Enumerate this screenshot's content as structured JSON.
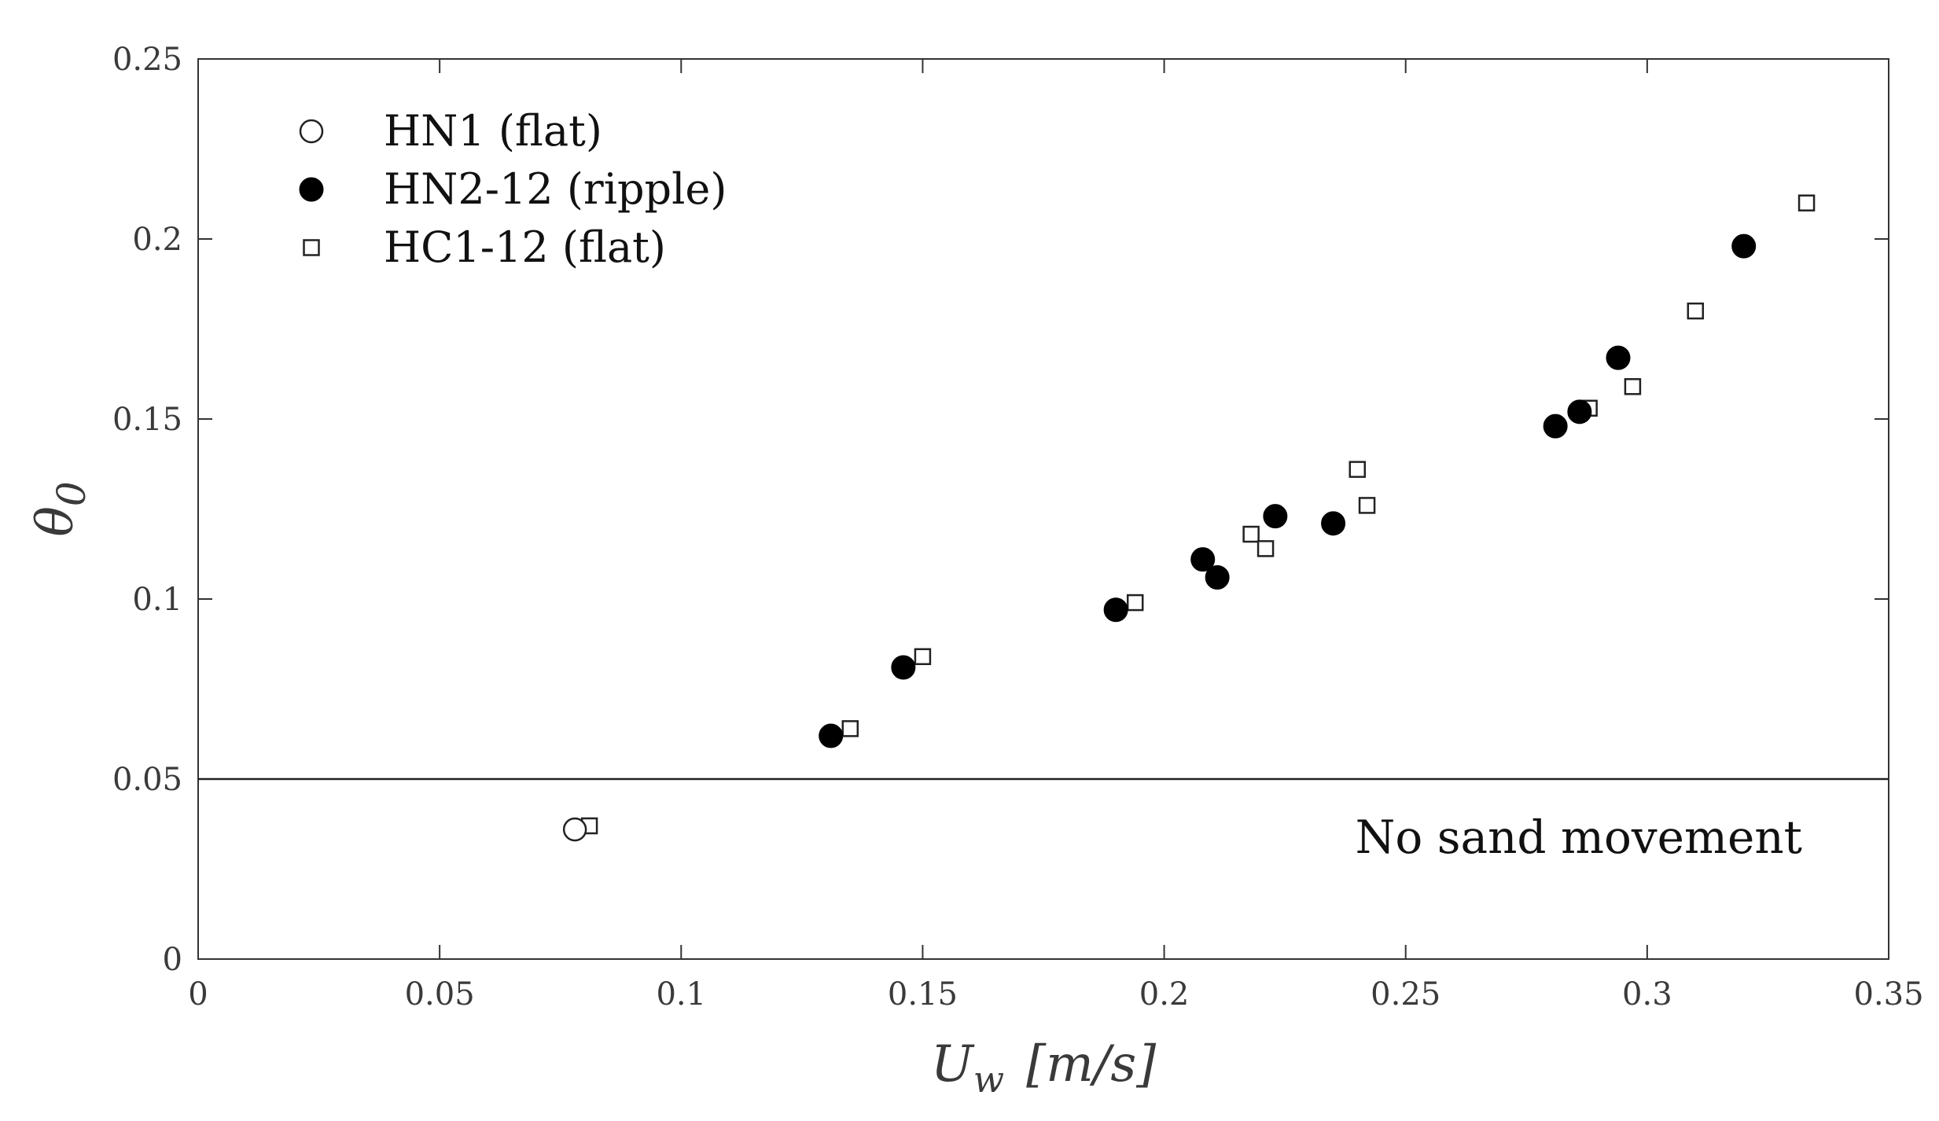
{
  "chart_data": {
    "type": "scatter",
    "title": "",
    "xlabel": "U_w [m/s]",
    "ylabel": "θ0",
    "xlim": [
      0,
      0.35
    ],
    "ylim": [
      0,
      0.25
    ],
    "xticks": [
      0,
      0.05,
      0.1,
      0.15,
      0.2,
      0.25,
      0.3,
      0.35
    ],
    "xtick_labels": [
      "0",
      "0.05",
      "0.1",
      "0.15",
      "0.2",
      "0.25",
      "0.3",
      "0.35"
    ],
    "yticks": [
      0,
      0.05,
      0.1,
      0.15,
      0.2,
      0.25
    ],
    "ytick_labels": [
      "0",
      "0.05",
      "0.1",
      "0.15",
      "0.2",
      "0.25"
    ],
    "grid": false,
    "legend_position": "top-left",
    "series": [
      {
        "name": "HN1 (flat)",
        "marker": "open-circle",
        "points": [
          [
            0.078,
            0.036
          ]
        ]
      },
      {
        "name": "HN2-12 (ripple)",
        "marker": "filled-circle",
        "points": [
          [
            0.131,
            0.062
          ],
          [
            0.146,
            0.081
          ],
          [
            0.19,
            0.097
          ],
          [
            0.208,
            0.111
          ],
          [
            0.211,
            0.106
          ],
          [
            0.223,
            0.123
          ],
          [
            0.235,
            0.121
          ],
          [
            0.281,
            0.148
          ],
          [
            0.286,
            0.152
          ],
          [
            0.294,
            0.167
          ],
          [
            0.32,
            0.198
          ]
        ]
      },
      {
        "name": "HC1-12 (flat)",
        "marker": "open-square",
        "points": [
          [
            0.081,
            0.037
          ],
          [
            0.135,
            0.064
          ],
          [
            0.15,
            0.084
          ],
          [
            0.194,
            0.099
          ],
          [
            0.218,
            0.118
          ],
          [
            0.221,
            0.114
          ],
          [
            0.24,
            0.136
          ],
          [
            0.242,
            0.126
          ],
          [
            0.288,
            0.153
          ],
          [
            0.297,
            0.159
          ],
          [
            0.31,
            0.18
          ],
          [
            0.333,
            0.21
          ]
        ]
      }
    ],
    "threshold": {
      "y": 0.05,
      "label": "No sand movement"
    }
  }
}
